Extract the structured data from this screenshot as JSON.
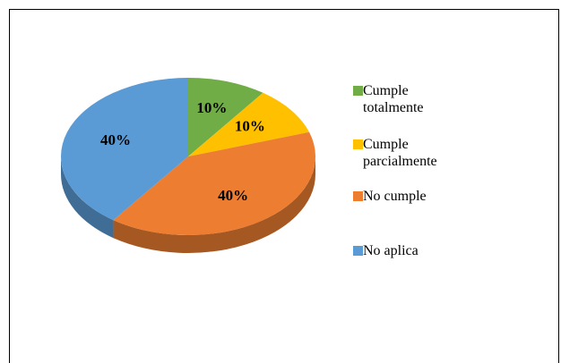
{
  "chart_data": {
    "type": "pie",
    "three_d": true,
    "categories": [
      "Cumple totalmente",
      "Cumple parcialmente",
      "No cumple",
      "No aplica"
    ],
    "values": [
      10,
      10,
      40,
      40
    ],
    "value_labels": [
      "10%",
      "10%",
      "40%",
      "40%"
    ],
    "colors": [
      "#70ad47",
      "#ffc000",
      "#ed7d31",
      "#5b9bd5"
    ],
    "legend": "right"
  }
}
